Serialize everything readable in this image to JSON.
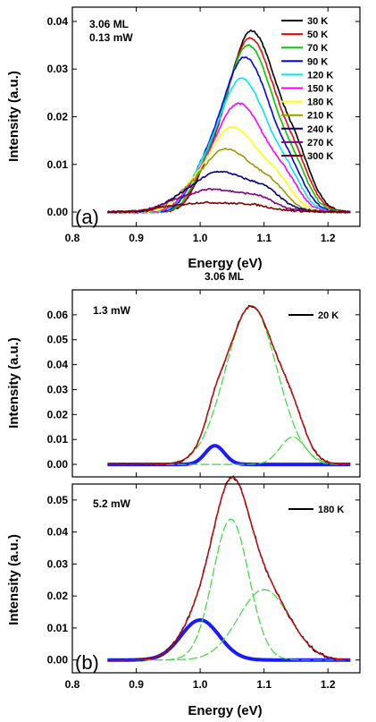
{
  "chart_data": [
    {
      "type": "line",
      "panel_label": "(a)",
      "annotation": [
        "3.06 ML",
        "0.13 mW"
      ],
      "xlabel": "Energy (eV)",
      "ylabel": "Intensity (a.u.)",
      "xlim": [
        0.8,
        1.25
      ],
      "ylim": [
        -0.003,
        0.043
      ],
      "xticks": [
        "0.8",
        "0.9",
        "1.0",
        "1.1",
        "1.2"
      ],
      "yticks": [
        "0.00",
        "0.01",
        "0.02",
        "0.03",
        "0.04"
      ],
      "legend_position": "top-right",
      "series": [
        {
          "name": "30 K",
          "color": "#000000",
          "peak": 0.038,
          "center": 1.08,
          "hwhm_left": 0.045,
          "hwhm_right": 0.052,
          "shoulder": 0.3
        },
        {
          "name": "50 K",
          "color": "#ff0000",
          "peak": 0.0365,
          "center": 1.078,
          "hwhm_left": 0.045,
          "hwhm_right": 0.051,
          "shoulder": 0.28
        },
        {
          "name": "70 K",
          "color": "#00cc00",
          "peak": 0.035,
          "center": 1.075,
          "hwhm_left": 0.045,
          "hwhm_right": 0.05,
          "shoulder": 0.27
        },
        {
          "name": "90 K",
          "color": "#0000ff",
          "peak": 0.0325,
          "center": 1.07,
          "hwhm_left": 0.046,
          "hwhm_right": 0.05,
          "shoulder": 0.26
        },
        {
          "name": "120 K",
          "color": "#00e5ff",
          "peak": 0.028,
          "center": 1.065,
          "hwhm_left": 0.046,
          "hwhm_right": 0.05,
          "shoulder": 0.3
        },
        {
          "name": "150 K",
          "color": "#ff00ff",
          "peak": 0.0228,
          "center": 1.06,
          "hwhm_left": 0.046,
          "hwhm_right": 0.052,
          "shoulder": 0.32
        },
        {
          "name": "180 K",
          "color": "#ffff00",
          "peak": 0.0178,
          "center": 1.05,
          "hwhm_left": 0.046,
          "hwhm_right": 0.055,
          "shoulder": 0.35
        },
        {
          "name": "210 K",
          "color": "#999900",
          "peak": 0.0133,
          "center": 1.04,
          "hwhm_left": 0.046,
          "hwhm_right": 0.058,
          "shoulder": 0.38
        },
        {
          "name": "240 K",
          "color": "#000080",
          "peak": 0.0085,
          "center": 1.03,
          "hwhm_left": 0.05,
          "hwhm_right": 0.065,
          "shoulder": 0.45
        },
        {
          "name": "270 K",
          "color": "#800080",
          "peak": 0.0048,
          "center": 1.02,
          "hwhm_left": 0.055,
          "hwhm_right": 0.07,
          "shoulder": 0.5
        },
        {
          "name": "300 K",
          "color": "#800000",
          "peak": 0.002,
          "center": 1.01,
          "hwhm_left": 0.06,
          "hwhm_right": 0.08,
          "shoulder": 0.5
        }
      ]
    },
    {
      "type": "line",
      "title": "3.06 ML",
      "annotation": "1.3 mW",
      "ylabel": "Intensity (a.u.)",
      "xlim": [
        0.8,
        1.25
      ],
      "ylim": [
        -0.005,
        0.07
      ],
      "yticks": [
        "0.00",
        "0.01",
        "0.02",
        "0.03",
        "0.04",
        "0.05",
        "0.06"
      ],
      "legend_position": "top-right",
      "legend": "20 K",
      "components": [
        {
          "center": 1.023,
          "sigma": 0.015,
          "amp": 0.0075,
          "style": "bold-blue"
        },
        {
          "center": 1.08,
          "sigma": 0.04,
          "amp": 0.0635,
          "style": "green-dashed"
        },
        {
          "center": 1.145,
          "sigma": 0.02,
          "amp": 0.011,
          "style": "green-dashed"
        }
      ]
    },
    {
      "type": "line",
      "panel_label": "(b)",
      "annotation": "5.2 mW",
      "xlabel": "Energy (eV)",
      "ylabel": "Intensity (a.u.)",
      "xlim": [
        0.8,
        1.25
      ],
      "ylim": [
        -0.004,
        0.055
      ],
      "xticks": [
        "0.8",
        "0.9",
        "1.0",
        "1.1",
        "1.2"
      ],
      "yticks": [
        "0.00",
        "0.01",
        "0.02",
        "0.03",
        "0.04",
        "0.05"
      ],
      "legend_position": "top-right",
      "legend": "180 K",
      "components": [
        {
          "center": 1.0,
          "sigma": 0.03,
          "amp": 0.0125,
          "style": "bold-blue"
        },
        {
          "center": 1.048,
          "sigma": 0.028,
          "amp": 0.044,
          "style": "green-dashed"
        },
        {
          "center": 1.1,
          "sigma": 0.04,
          "amp": 0.022,
          "style": "green-dashed"
        }
      ]
    }
  ]
}
